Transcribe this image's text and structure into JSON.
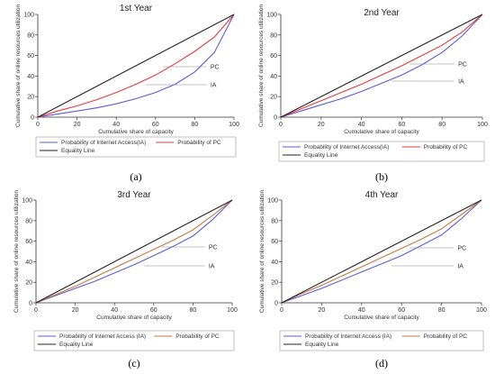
{
  "chart_data": [
    {
      "type": "line",
      "title": "1st Year",
      "panel_label": "(a)",
      "xlabel": "Cumulative share of capacity",
      "ylabel": "Cumulative share of online resources utilization",
      "xlim": [
        0,
        100
      ],
      "ylim": [
        0,
        100
      ],
      "xticks": [
        "0",
        "20",
        "40",
        "60",
        "80",
        "100"
      ],
      "yticks": [
        "0",
        "20",
        "40",
        "60",
        "80",
        "100"
      ],
      "grid": false,
      "annotations": [
        "PC",
        "IA"
      ],
      "legend": [
        "Probability of Internet Access(IA)",
        "Probability of PC",
        "Equality Line"
      ],
      "series": [
        {
          "name": "Probability of Internet Access(IA)",
          "color": "#5b5bd6",
          "x": [
            0,
            10,
            20,
            30,
            40,
            50,
            60,
            70,
            80,
            90,
            100
          ],
          "y": [
            0,
            3,
            6,
            9,
            13,
            18,
            24,
            32,
            44,
            63,
            100
          ]
        },
        {
          "name": "Probability of PC",
          "color": "#e8383d",
          "x": [
            0,
            10,
            20,
            30,
            40,
            50,
            60,
            70,
            80,
            90,
            100
          ],
          "y": [
            0,
            6,
            11,
            17,
            24,
            32,
            41,
            52,
            64,
            78,
            100
          ]
        },
        {
          "name": "Equality Line",
          "color": "#222222",
          "x": [
            0,
            100
          ],
          "y": [
            0,
            100
          ]
        }
      ]
    },
    {
      "type": "line",
      "title": "2nd Year",
      "panel_label": "(b)",
      "xlabel": "Cumulative share of capacity",
      "ylabel": "Cumulative share of online resources utilization",
      "xlim": [
        0,
        100
      ],
      "ylim": [
        0,
        100
      ],
      "xticks": [
        "0",
        "20",
        "40",
        "60",
        "80",
        "100"
      ],
      "yticks": [
        "0",
        "20",
        "40",
        "60",
        "80",
        "100"
      ],
      "grid": false,
      "annotations": [
        "PC",
        "IA"
      ],
      "legend": [
        "Probability of Internet Access(IA)",
        "Probability of PC",
        "Equality Line"
      ],
      "series": [
        {
          "name": "Probability of Internet Access(IA)",
          "color": "#5b5bd6",
          "x": [
            0,
            10,
            20,
            30,
            40,
            50,
            60,
            70,
            80,
            90,
            100
          ],
          "y": [
            0,
            6,
            12,
            18,
            25,
            33,
            41,
            51,
            63,
            79,
            100
          ]
        },
        {
          "name": "Probability of PC",
          "color": "#e8383d",
          "x": [
            0,
            10,
            20,
            30,
            40,
            50,
            60,
            70,
            80,
            90,
            100
          ],
          "y": [
            0,
            8,
            16,
            24,
            32,
            41,
            50,
            60,
            70,
            83,
            100
          ]
        },
        {
          "name": "Equality Line",
          "color": "#222222",
          "x": [
            0,
            100
          ],
          "y": [
            0,
            100
          ]
        }
      ]
    },
    {
      "type": "line",
      "title": "3rd Year",
      "panel_label": "(c)",
      "xlabel": "Cumulative share of capacity",
      "ylabel": "Cumulative share of online resources utilization",
      "xlim": [
        0,
        100
      ],
      "ylim": [
        0,
        100
      ],
      "xticks": [
        "0",
        "20",
        "40",
        "60",
        "80",
        "100"
      ],
      "yticks": [
        "0",
        "20",
        "40",
        "60",
        "80",
        "100"
      ],
      "grid": false,
      "annotations": [
        "PC",
        "IA"
      ],
      "legend": [
        "Probability of Internet Access (IA)",
        "Probability of PC",
        "Equality Line"
      ],
      "series": [
        {
          "name": "Probability of Internet Access (IA)",
          "color": "#5b5bd6",
          "x": [
            0,
            10,
            20,
            30,
            40,
            50,
            60,
            70,
            80,
            90,
            100
          ],
          "y": [
            0,
            7,
            14,
            21,
            29,
            37,
            46,
            55,
            65,
            81,
            100
          ]
        },
        {
          "name": "Probability of PC",
          "color": "#c47a3f",
          "x": [
            0,
            10,
            20,
            30,
            40,
            50,
            60,
            70,
            80,
            90,
            100
          ],
          "y": [
            0,
            8,
            16,
            25,
            34,
            43,
            52,
            61,
            71,
            85,
            100
          ]
        },
        {
          "name": "Equality Line",
          "color": "#222222",
          "x": [
            0,
            100
          ],
          "y": [
            0,
            100
          ]
        }
      ]
    },
    {
      "type": "line",
      "title": "4th Year",
      "panel_label": "(d)",
      "xlabel": "Cumulative share of capacity",
      "ylabel": "Cumulative share of online resources utilization",
      "xlim": [
        0,
        100
      ],
      "ylim": [
        0,
        100
      ],
      "xticks": [
        "0",
        "20",
        "40",
        "60",
        "80",
        "100"
      ],
      "yticks": [
        "0",
        "20",
        "40",
        "60",
        "80",
        "100"
      ],
      "grid": false,
      "annotations": [
        "PC",
        "IA"
      ],
      "legend": [
        "Probability of Internet Access (IA)",
        "Probability of PC",
        "Equality Line"
      ],
      "series": [
        {
          "name": "Probability of Internet Access (IA)",
          "color": "#5b5bd6",
          "x": [
            0,
            10,
            20,
            30,
            40,
            50,
            60,
            70,
            80,
            90,
            100
          ],
          "y": [
            0,
            7,
            14,
            22,
            30,
            38,
            46,
            56,
            66,
            82,
            100
          ]
        },
        {
          "name": "Probability of PC",
          "color": "#c47a3f",
          "x": [
            0,
            10,
            20,
            30,
            40,
            50,
            60,
            70,
            80,
            90,
            100
          ],
          "y": [
            0,
            9,
            17,
            26,
            35,
            44,
            53,
            62,
            72,
            86,
            100
          ]
        },
        {
          "name": "Equality Line",
          "color": "#222222",
          "x": [
            0,
            100
          ],
          "y": [
            0,
            100
          ]
        }
      ]
    }
  ]
}
